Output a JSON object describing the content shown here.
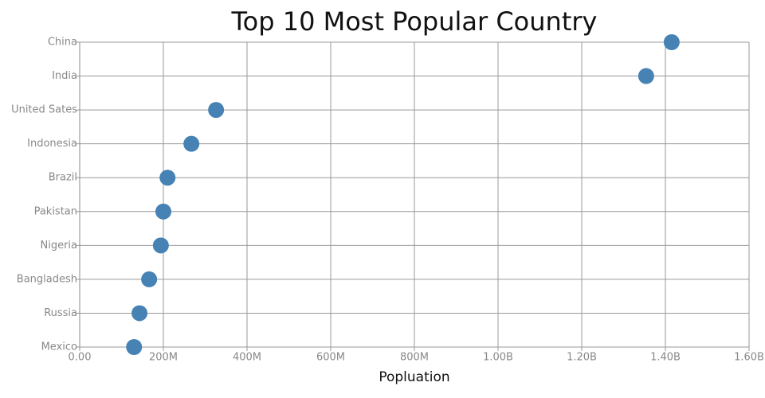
{
  "chart_data": {
    "type": "dot",
    "title": "Top 10 Most Popular Country",
    "x_label": "Popluation",
    "categories": [
      "China",
      "India",
      "United Sates",
      "Indonesia",
      "Brazil",
      "Pakistan",
      "Nigeria",
      "Bangladesh",
      "Russia",
      "Mexico"
    ],
    "values": [
      1415000000,
      1354000000,
      326000000,
      267000000,
      210000000,
      200000000,
      194000000,
      166000000,
      143000000,
      130000000
    ],
    "color": "#4682b4",
    "xlim": [
      0,
      1600000000
    ],
    "xticks": [
      {
        "value": 0,
        "label": "0.00"
      },
      {
        "value": 200000000,
        "label": "200M"
      },
      {
        "value": 400000000,
        "label": "400M"
      },
      {
        "value": 600000000,
        "label": "600M"
      },
      {
        "value": 800000000,
        "label": "800M"
      },
      {
        "value": 1000000000,
        "label": "1.00B"
      },
      {
        "value": 1200000000,
        "label": "1.20B"
      },
      {
        "value": 1400000000,
        "label": "1.40B"
      },
      {
        "value": 1600000000,
        "label": "1.60B"
      }
    ],
    "grid": true
  }
}
